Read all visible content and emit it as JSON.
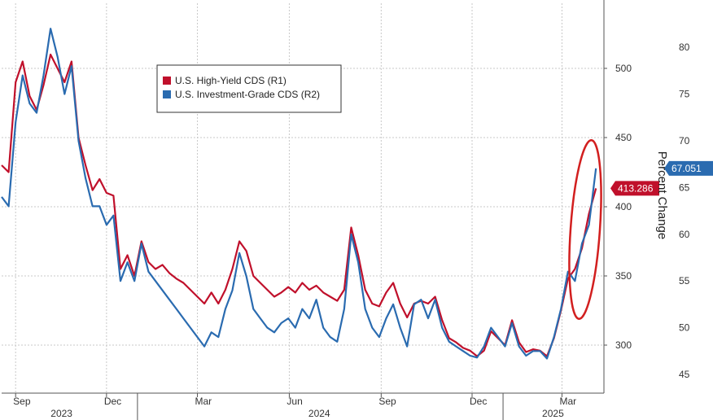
{
  "chart_data": {
    "type": "line",
    "title": "",
    "x_tick_labels": [
      "Sep",
      "Dec",
      "Mar",
      "Jun",
      "Sep",
      "Dec",
      "Mar"
    ],
    "x_year_labels": [
      "2023",
      "2024",
      "2025"
    ],
    "y_left": {
      "label": "",
      "ticks": [
        "300",
        "350",
        "400",
        "450",
        "500"
      ],
      "range": [
        275,
        530
      ]
    },
    "y_right": {
      "label": "Percent Change",
      "ticks": [
        "45",
        "50",
        "55",
        "60",
        "65",
        "70",
        "75",
        "80"
      ],
      "range": [
        43,
        84
      ]
    },
    "grid": true,
    "legend_position": "top-center",
    "series": [
      {
        "name": "U.S. High-Yield CDS (R1)",
        "color": "#c0102b",
        "axis": "left",
        "last_value": "413.286",
        "points": [
          [
            "2023-08-18",
            430
          ],
          [
            "2023-08-25",
            425
          ],
          [
            "2023-09-01",
            490
          ],
          [
            "2023-09-08",
            505
          ],
          [
            "2023-09-15",
            480
          ],
          [
            "2023-09-22",
            470
          ],
          [
            "2023-09-29",
            488
          ],
          [
            "2023-10-06",
            510
          ],
          [
            "2023-10-13",
            500
          ],
          [
            "2023-10-20",
            490
          ],
          [
            "2023-10-27",
            505
          ],
          [
            "2023-11-03",
            450
          ],
          [
            "2023-11-10",
            430
          ],
          [
            "2023-11-17",
            412
          ],
          [
            "2023-11-24",
            420
          ],
          [
            "2023-12-01",
            410
          ],
          [
            "2023-12-08",
            408
          ],
          [
            "2023-12-15",
            355
          ],
          [
            "2023-12-22",
            365
          ],
          [
            "2023-12-29",
            350
          ],
          [
            "2024-01-05",
            375
          ],
          [
            "2024-01-12",
            360
          ],
          [
            "2024-01-19",
            355
          ],
          [
            "2024-01-26",
            358
          ],
          [
            "2024-02-02",
            352
          ],
          [
            "2024-02-09",
            348
          ],
          [
            "2024-02-16",
            345
          ],
          [
            "2024-02-23",
            340
          ],
          [
            "2024-03-01",
            335
          ],
          [
            "2024-03-08",
            330
          ],
          [
            "2024-03-15",
            338
          ],
          [
            "2024-03-22",
            330
          ],
          [
            "2024-03-29",
            340
          ],
          [
            "2024-04-05",
            355
          ],
          [
            "2024-04-12",
            375
          ],
          [
            "2024-04-19",
            368
          ],
          [
            "2024-04-26",
            350
          ],
          [
            "2024-05-03",
            345
          ],
          [
            "2024-05-10",
            340
          ],
          [
            "2024-05-17",
            335
          ],
          [
            "2024-05-24",
            338
          ],
          [
            "2024-05-31",
            342
          ],
          [
            "2024-06-07",
            338
          ],
          [
            "2024-06-14",
            345
          ],
          [
            "2024-06-21",
            340
          ],
          [
            "2024-06-28",
            343
          ],
          [
            "2024-07-05",
            338
          ],
          [
            "2024-07-12",
            335
          ],
          [
            "2024-07-19",
            332
          ],
          [
            "2024-07-26",
            340
          ],
          [
            "2024-08-02",
            385
          ],
          [
            "2024-08-09",
            365
          ],
          [
            "2024-08-16",
            340
          ],
          [
            "2024-08-23",
            330
          ],
          [
            "2024-08-30",
            328
          ],
          [
            "2024-09-06",
            338
          ],
          [
            "2024-09-13",
            345
          ],
          [
            "2024-09-20",
            330
          ],
          [
            "2024-09-27",
            320
          ],
          [
            "2024-10-04",
            330
          ],
          [
            "2024-10-11",
            332
          ],
          [
            "2024-10-18",
            330
          ],
          [
            "2024-10-25",
            335
          ],
          [
            "2024-11-01",
            318
          ],
          [
            "2024-11-08",
            305
          ],
          [
            "2024-11-15",
            302
          ],
          [
            "2024-11-22",
            298
          ],
          [
            "2024-11-29",
            296
          ],
          [
            "2024-12-06",
            292
          ],
          [
            "2024-12-13",
            296
          ],
          [
            "2024-12-20",
            310
          ],
          [
            "2024-12-27",
            305
          ],
          [
            "2025-01-03",
            300
          ],
          [
            "2025-01-10",
            318
          ],
          [
            "2025-01-17",
            302
          ],
          [
            "2025-01-24",
            295
          ],
          [
            "2025-01-31",
            297
          ],
          [
            "2025-02-07",
            296
          ],
          [
            "2025-02-14",
            292
          ],
          [
            "2025-02-21",
            305
          ],
          [
            "2025-02-28",
            325
          ],
          [
            "2025-03-07",
            348
          ],
          [
            "2025-03-14",
            355
          ],
          [
            "2025-03-21",
            370
          ],
          [
            "2025-03-28",
            395
          ],
          [
            "2025-04-04",
            413.286
          ]
        ]
      },
      {
        "name": "U.S. Investment-Grade CDS (R2)",
        "color": "#2a6bb0",
        "axis": "right",
        "last_value": "67.051",
        "points": [
          [
            "2023-08-18",
            64
          ],
          [
            "2023-08-25",
            63
          ],
          [
            "2023-09-01",
            72
          ],
          [
            "2023-09-08",
            77
          ],
          [
            "2023-09-15",
            74
          ],
          [
            "2023-09-22",
            73
          ],
          [
            "2023-09-29",
            77
          ],
          [
            "2023-10-06",
            82
          ],
          [
            "2023-10-13",
            79
          ],
          [
            "2023-10-20",
            75
          ],
          [
            "2023-10-27",
            78
          ],
          [
            "2023-11-03",
            70
          ],
          [
            "2023-11-10",
            66
          ],
          [
            "2023-11-17",
            63
          ],
          [
            "2023-11-24",
            63
          ],
          [
            "2023-12-01",
            61
          ],
          [
            "2023-12-08",
            62
          ],
          [
            "2023-12-15",
            55
          ],
          [
            "2023-12-22",
            57
          ],
          [
            "2023-12-29",
            55
          ],
          [
            "2024-01-05",
            59
          ],
          [
            "2024-01-12",
            56
          ],
          [
            "2024-01-19",
            55
          ],
          [
            "2024-01-26",
            54
          ],
          [
            "2024-02-02",
            53
          ],
          [
            "2024-02-09",
            52
          ],
          [
            "2024-02-16",
            51
          ],
          [
            "2024-02-23",
            50
          ],
          [
            "2024-03-01",
            49
          ],
          [
            "2024-03-08",
            48
          ],
          [
            "2024-03-15",
            49.5
          ],
          [
            "2024-03-22",
            49
          ],
          [
            "2024-03-29",
            52
          ],
          [
            "2024-04-05",
            54
          ],
          [
            "2024-04-12",
            58
          ],
          [
            "2024-04-19",
            55.5
          ],
          [
            "2024-04-26",
            52
          ],
          [
            "2024-05-03",
            51
          ],
          [
            "2024-05-10",
            50
          ],
          [
            "2024-05-17",
            49.5
          ],
          [
            "2024-05-24",
            50.5
          ],
          [
            "2024-05-31",
            51
          ],
          [
            "2024-06-07",
            50
          ],
          [
            "2024-06-14",
            52
          ],
          [
            "2024-06-21",
            51
          ],
          [
            "2024-06-28",
            53
          ],
          [
            "2024-07-05",
            50
          ],
          [
            "2024-07-12",
            49
          ],
          [
            "2024-07-19",
            48.5
          ],
          [
            "2024-07-26",
            52
          ],
          [
            "2024-08-02",
            60
          ],
          [
            "2024-08-09",
            57
          ],
          [
            "2024-08-16",
            52
          ],
          [
            "2024-08-23",
            50
          ],
          [
            "2024-08-30",
            49
          ],
          [
            "2024-09-06",
            51
          ],
          [
            "2024-09-13",
            52.5
          ],
          [
            "2024-09-20",
            50
          ],
          [
            "2024-09-27",
            48
          ],
          [
            "2024-10-04",
            52.5
          ],
          [
            "2024-10-11",
            53
          ],
          [
            "2024-10-18",
            51
          ],
          [
            "2024-10-25",
            53
          ],
          [
            "2024-11-01",
            50
          ],
          [
            "2024-11-08",
            48.5
          ],
          [
            "2024-11-15",
            48
          ],
          [
            "2024-11-22",
            47.5
          ],
          [
            "2024-11-29",
            47
          ],
          [
            "2024-12-06",
            46.8
          ],
          [
            "2024-12-13",
            48
          ],
          [
            "2024-12-20",
            50
          ],
          [
            "2024-12-27",
            49
          ],
          [
            "2025-01-03",
            48
          ],
          [
            "2025-01-10",
            50.5
          ],
          [
            "2025-01-17",
            48
          ],
          [
            "2025-01-24",
            47
          ],
          [
            "2025-01-31",
            47.5
          ],
          [
            "2025-02-07",
            47.5
          ],
          [
            "2025-02-14",
            46.7
          ],
          [
            "2025-02-21",
            49
          ],
          [
            "2025-02-28",
            52
          ],
          [
            "2025-03-07",
            56
          ],
          [
            "2025-03-14",
            55
          ],
          [
            "2025-03-21",
            59
          ],
          [
            "2025-03-28",
            61
          ],
          [
            "2025-04-04",
            67.051
          ]
        ]
      }
    ]
  }
}
